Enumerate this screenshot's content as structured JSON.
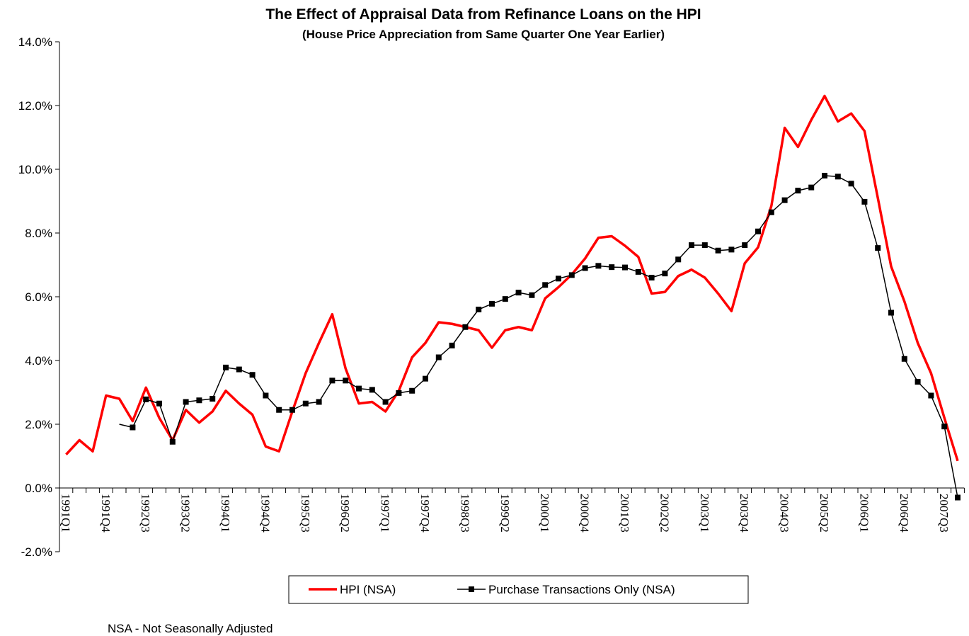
{
  "chart_data": {
    "type": "line",
    "title": "The Effect of Appraisal Data from Refinance Loans on the HPI",
    "subtitle": "(House Price Appreciation from Same Quarter One Year Earlier)",
    "footnote": "NSA - Not Seasonally Adjusted",
    "categories": [
      "1991Q1",
      null,
      null,
      "1991Q4",
      null,
      null,
      "1992Q3",
      null,
      null,
      "1993Q2",
      null,
      null,
      "1994Q1",
      null,
      null,
      "1994Q4",
      null,
      null,
      "1995Q3",
      null,
      null,
      "1996Q2",
      null,
      null,
      "1997Q1",
      null,
      null,
      "1997Q4",
      null,
      null,
      "1998Q3",
      null,
      null,
      "1999Q2",
      null,
      null,
      "2000Q1",
      null,
      null,
      "2000Q4",
      null,
      null,
      "2001Q3",
      null,
      null,
      "2002Q2",
      null,
      null,
      "2003Q1",
      null,
      null,
      "2003Q4",
      null,
      null,
      "2004Q3",
      null,
      null,
      "2005Q2",
      null,
      null,
      "2006Q1",
      null,
      null,
      "2006Q4",
      null,
      null,
      "2007Q3",
      null
    ],
    "series": [
      {
        "name": "HPI (NSA)",
        "color": "#ff0000",
        "marker": false,
        "values": [
          1.05,
          1.5,
          1.15,
          2.9,
          2.8,
          2.1,
          3.15,
          2.2,
          1.5,
          2.45,
          2.05,
          2.4,
          3.05,
          2.65,
          2.3,
          1.3,
          1.15,
          2.4,
          3.6,
          4.55,
          5.45,
          3.75,
          2.65,
          2.7,
          2.4,
          3.05,
          4.1,
          4.55,
          5.2,
          5.15,
          5.05,
          4.95,
          4.4,
          4.95,
          5.05,
          4.95,
          5.95,
          6.3,
          6.7,
          7.2,
          7.85,
          7.9,
          7.6,
          7.25,
          6.1,
          6.15,
          6.65,
          6.85,
          6.6,
          6.1,
          5.55,
          7.05,
          7.55,
          8.85,
          11.3,
          10.7,
          11.55,
          12.3,
          11.5,
          11.75,
          11.2,
          9.1,
          6.95,
          5.85,
          4.55,
          3.6,
          2.2,
          0.85
        ]
      },
      {
        "name": "Purchase Transactions Only (NSA)",
        "color": "#000000",
        "marker": true,
        "values": [
          null,
          null,
          null,
          null,
          2.0,
          1.9,
          2.78,
          2.65,
          1.45,
          2.7,
          2.75,
          2.8,
          3.78,
          3.72,
          3.55,
          2.9,
          2.45,
          2.45,
          2.65,
          2.7,
          3.37,
          3.37,
          3.12,
          3.08,
          2.7,
          2.98,
          3.05,
          3.43,
          4.1,
          4.47,
          5.05,
          5.6,
          5.78,
          5.93,
          6.13,
          6.05,
          6.37,
          6.57,
          6.68,
          6.9,
          6.97,
          6.93,
          6.92,
          6.78,
          6.6,
          6.73,
          7.17,
          7.62,
          7.62,
          7.45,
          7.48,
          7.62,
          8.05,
          8.65,
          9.03,
          9.33,
          9.43,
          9.8,
          9.77,
          9.55,
          8.98,
          7.53,
          5.5,
          4.05,
          3.33,
          2.9,
          1.93,
          -0.3
        ]
      }
    ],
    "ylim": [
      -2,
      14
    ],
    "yticks": [
      {
        "value": -2,
        "label": "-2.0%"
      },
      {
        "value": 0,
        "label": "0.0%"
      },
      {
        "value": 2,
        "label": "2.0%"
      },
      {
        "value": 4,
        "label": "4.0%"
      },
      {
        "value": 6,
        "label": "6.0%"
      },
      {
        "value": 8,
        "label": "8.0%"
      },
      {
        "value": 10,
        "label": "10.0%"
      },
      {
        "value": 12,
        "label": "12.0%"
      },
      {
        "value": 14,
        "label": "14.0%"
      }
    ],
    "grid": false,
    "legend": "bottom"
  }
}
